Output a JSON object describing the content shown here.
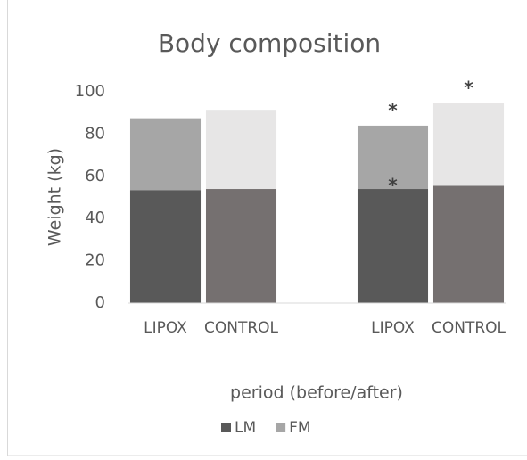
{
  "chart_data": {
    "type": "stacked_bar",
    "title": "Body composition",
    "y_label": "Weight (kg)",
    "x_label": "period (before/after)",
    "categories": [
      "LIPOX",
      "CONTROL",
      null,
      "LIPOX",
      "CONTROL"
    ],
    "series": [
      {
        "name": "LM",
        "color": "#595959",
        "colors": [
          "#595959",
          "#757070",
          null,
          "#595959",
          "#757070"
        ],
        "values": [
          53.5,
          54,
          null,
          54,
          55.5
        ]
      },
      {
        "name": "FM",
        "color": "#a6a6a6",
        "colors": [
          "#a6a6a6",
          "#e7e6e6",
          null,
          "#a6a6a6",
          "#e7e6e6"
        ],
        "values": [
          34,
          37.5,
          null,
          30,
          39
        ]
      }
    ],
    "annotations": [
      {
        "text": "*",
        "x": 3,
        "y": 92.5
      },
      {
        "text": "*",
        "x": 3,
        "y": 57
      },
      {
        "text": "*",
        "x": 4,
        "y": 103
      }
    ],
    "ylim": [
      0,
      100
    ],
    "yticks": [
      0,
      20,
      40,
      60,
      80,
      100
    ],
    "grid": false,
    "legend": "bottom"
  }
}
